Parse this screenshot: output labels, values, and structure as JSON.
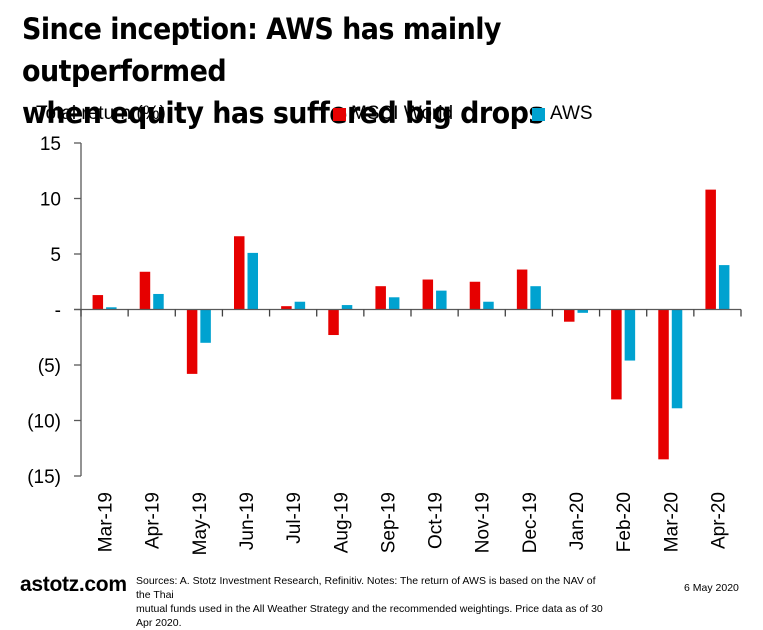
{
  "title_line1": "Since inception: AWS has mainly outperformed",
  "title_line2": "when equity has suffered big drops",
  "footer": {
    "brand": "astotz.com",
    "notes_line1": "Sources: A. Stotz Investment Research, Refinitiv. Notes: The return of AWS is based on the NAV of the Thai",
    "notes_line2": "mutual funds used in the All Weather Strategy and the recommended weightings. Price data as of 30 Apr 2020.",
    "date": "6 May 2020"
  },
  "chart_data": {
    "type": "bar",
    "title": "Since inception: AWS has mainly outperformed when equity has suffered big drops",
    "xlabel": "",
    "ylabel": "Total return (%)",
    "ylim": [
      -15,
      15
    ],
    "yticks": [
      15,
      10,
      5,
      0,
      -5,
      -10,
      -15
    ],
    "ytick_labels": [
      "15",
      "10",
      "5",
      "-",
      "(5)",
      "(10)",
      "(15)"
    ],
    "grid": false,
    "legend_position": "top-center",
    "categories": [
      "Mar-19",
      "Apr-19",
      "May-19",
      "Jun-19",
      "Jul-19",
      "Aug-19",
      "Sep-19",
      "Oct-19",
      "Nov-19",
      "Dec-19",
      "Jan-20",
      "Feb-20",
      "Mar-20",
      "Apr-20"
    ],
    "series": [
      {
        "name": "MSCI World",
        "color": "#e60000",
        "values": [
          1.3,
          3.4,
          -5.8,
          6.6,
          0.3,
          -2.3,
          2.1,
          2.7,
          2.5,
          3.6,
          -1.1,
          -8.1,
          -13.5,
          10.8
        ]
      },
      {
        "name": "AWS",
        "color": "#00a2d0",
        "values": [
          0.2,
          1.4,
          -3.0,
          5.1,
          0.7,
          0.4,
          1.1,
          1.7,
          0.7,
          2.1,
          -0.3,
          -4.6,
          -8.9,
          4.0
        ]
      }
    ]
  }
}
